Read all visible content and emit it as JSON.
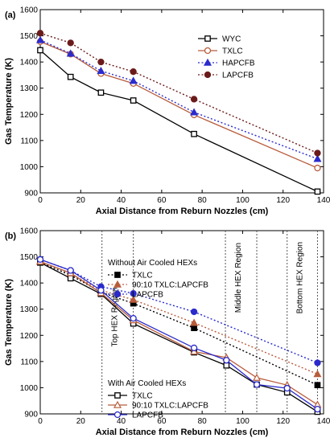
{
  "chart_data": [
    {
      "panel_label": "(a)",
      "type": "line",
      "xlabel": "Axial Distance from Reburn Nozzles (cm)",
      "ylabel": "Gas Temperature (K)",
      "xlim": [
        0,
        140
      ],
      "ylim": [
        900,
        1600
      ],
      "xticks": [
        "0",
        "20",
        "40",
        "60",
        "80",
        "100",
        "120",
        "140"
      ],
      "yticks": [
        "900",
        "1000",
        "1100",
        "1200",
        "1300",
        "1400",
        "1500",
        "1600"
      ],
      "legend_position": "top-right",
      "series": [
        {
          "name": "WYC",
          "color": "#000000",
          "dash": "solid",
          "marker": "square-open",
          "points": [
            [
              0,
              1445
            ],
            [
              15,
              1343
            ],
            [
              30,
              1283
            ],
            [
              46,
              1253
            ],
            [
              76,
              1125
            ],
            [
              137,
              905
            ]
          ]
        },
        {
          "name": "TXLC",
          "color": "#b85c3c",
          "dash": "solid",
          "marker": "circle-open",
          "points": [
            [
              0,
              1478
            ],
            [
              15,
              1430
            ],
            [
              30,
              1356
            ],
            [
              46,
              1318
            ],
            [
              76,
              1198
            ],
            [
              137,
              995
            ]
          ]
        },
        {
          "name": "HAPCFB",
          "color": "#2b2bcc",
          "dash": "dotted",
          "marker": "triangle-filled",
          "points": [
            [
              0,
              1484
            ],
            [
              15,
              1432
            ],
            [
              30,
              1366
            ],
            [
              46,
              1328
            ],
            [
              76,
              1208
            ],
            [
              137,
              1030
            ]
          ]
        },
        {
          "name": "LAPCFB",
          "color": "#6b1a1a",
          "dash": "dotted",
          "marker": "circle-filled",
          "points": [
            [
              0,
              1510
            ],
            [
              15,
              1473
            ],
            [
              30,
              1400
            ],
            [
              46,
              1363
            ],
            [
              76,
              1258
            ],
            [
              137,
              1052
            ]
          ]
        }
      ]
    },
    {
      "panel_label": "(b)",
      "type": "line",
      "xlabel": "Axial Distance from Reburn Nozzles (cm)",
      "ylabel": "Gas Temperature (K)",
      "xlim": [
        0,
        140
      ],
      "ylim": [
        900,
        1600
      ],
      "xticks": [
        "0",
        "20",
        "40",
        "60",
        "80",
        "100",
        "120",
        "140"
      ],
      "yticks": [
        "900",
        "1000",
        "1100",
        "1200",
        "1300",
        "1400",
        "1500",
        "1600"
      ],
      "legend_groups": [
        {
          "title": "Without Air Cooled HEXs",
          "position": "top-left",
          "entries": [
            "TXLC",
            "90:10 TXLC:LAPCFB",
            "LAPCFB"
          ]
        },
        {
          "title": "With Air Cooled HEXs",
          "position": "bottom-center",
          "entries": [
            "TXLC",
            "90:10 TXLC:LAPCFB",
            "LAPCFB"
          ]
        }
      ],
      "region_lines_x": [
        30.5,
        46,
        91.5,
        107,
        122,
        137
      ],
      "region_labels": [
        {
          "text": "Top HEX Region",
          "x": 38,
          "y": 1270
        },
        {
          "text": "Middle HEX Region",
          "x": 99,
          "y": 1420
        },
        {
          "text": "Bottom HEX Region",
          "x": 129.5,
          "y": 1420
        }
      ],
      "series": [
        {
          "name": "TXLC",
          "group": "Without Air Cooled HEXs",
          "color": "#000000",
          "dash": "dotted",
          "marker": "square-filled",
          "points": [
            [
              0,
              1478
            ],
            [
              15,
              1430
            ],
            [
              30,
              1365
            ],
            [
              46,
              1322
            ],
            [
              76,
              1228
            ],
            [
              137,
              1010
            ]
          ]
        },
        {
          "name": "90:10 TXLC:LAPCFB",
          "group": "Without Air Cooled HEXs",
          "color": "#b85c3c",
          "dash": "dotted",
          "marker": "triangle-filled",
          "points": [
            [
              0,
              1482
            ],
            [
              15,
              1436
            ],
            [
              30,
              1372
            ],
            [
              46,
              1336
            ],
            [
              76,
              1248
            ],
            [
              137,
              1052
            ]
          ]
        },
        {
          "name": "LAPCFB",
          "group": "Without Air Cooled HEXs",
          "color": "#2b2bcc",
          "dash": "dotted",
          "marker": "circle-filled",
          "points": [
            [
              0,
              1490
            ],
            [
              15,
              1448
            ],
            [
              30,
              1386
            ],
            [
              46,
              1360
            ],
            [
              76,
              1290
            ],
            [
              137,
              1095
            ]
          ]
        },
        {
          "name": "TXLC",
          "group": "With Air Cooled HEXs",
          "color": "#000000",
          "dash": "solid",
          "marker": "square-open",
          "points": [
            [
              0,
              1478
            ],
            [
              15,
              1418
            ],
            [
              30,
              1358
            ],
            [
              46,
              1245
            ],
            [
              76,
              1135
            ],
            [
              92,
              1085
            ],
            [
              107,
              1012
            ],
            [
              122,
              982
            ],
            [
              137,
              908
            ]
          ]
        },
        {
          "name": "90:10 TXLC:LAPCFB",
          "group": "With Air Cooled HEXs",
          "color": "#b85c3c",
          "dash": "solid",
          "marker": "triangle-open",
          "points": [
            [
              0,
              1482
            ],
            [
              15,
              1438
            ],
            [
              30,
              1362
            ],
            [
              46,
              1258
            ],
            [
              76,
              1138
            ],
            [
              92,
              1115
            ],
            [
              107,
              1038
            ],
            [
              122,
              1010
            ],
            [
              137,
              935
            ]
          ]
        },
        {
          "name": "LAPCFB",
          "group": "With Air Cooled HEXs",
          "color": "#2b2bcc",
          "dash": "solid",
          "marker": "circle-open",
          "points": [
            [
              0,
              1490
            ],
            [
              15,
              1448
            ],
            [
              30,
              1372
            ],
            [
              46,
              1265
            ],
            [
              76,
              1152
            ],
            [
              92,
              1105
            ],
            [
              107,
              1012
            ],
            [
              122,
              998
            ],
            [
              137,
              918
            ]
          ]
        }
      ]
    }
  ]
}
